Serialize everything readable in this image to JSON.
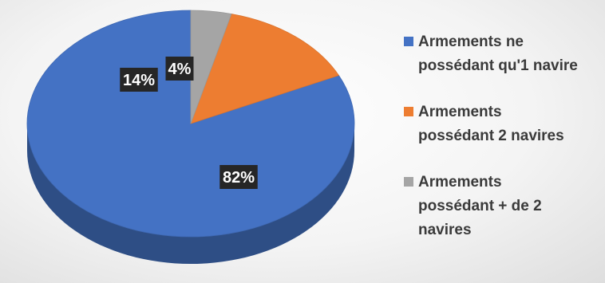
{
  "chart_data": {
    "type": "pie",
    "style": "3d",
    "title": "",
    "legend_position": "right",
    "slices": [
      {
        "label": "Armements ne possédant qu'1 navire",
        "legend_lines": [
          "Armements ne",
          "possédant qu'1 navire"
        ],
        "value": 82,
        "data_label": "82%",
        "color": "#4472C4"
      },
      {
        "label": "Armements possédant 2 navires",
        "legend_lines": [
          "Armements",
          "possédant 2 navires"
        ],
        "value": 14,
        "data_label": "14%",
        "color": "#ED7D31"
      },
      {
        "label": "Armements possédant + de 2 navires",
        "legend_lines": [
          "Armements",
          "possédant + de 2",
          "navires"
        ],
        "value": 4,
        "data_label": "4%",
        "color": "#A5A5A5"
      }
    ]
  },
  "label_style": {
    "background": "#262626",
    "color": "#ffffff"
  }
}
